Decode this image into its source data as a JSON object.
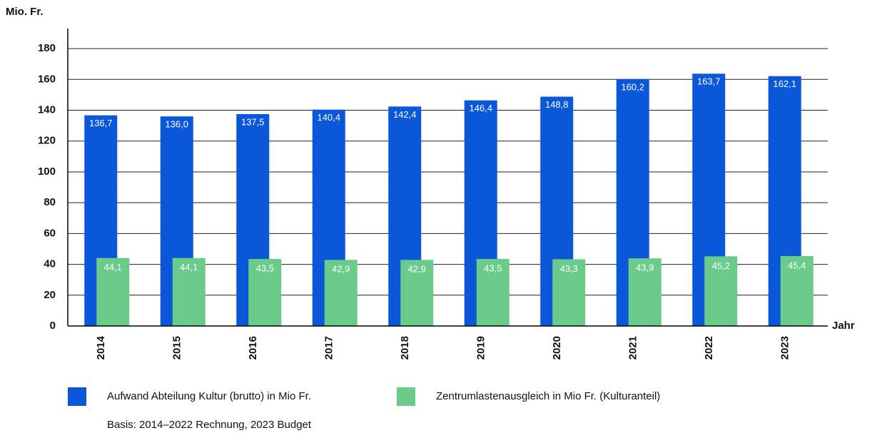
{
  "chart_data": {
    "type": "bar",
    "y_label": "Mio. Fr.",
    "x_label": "Jahr",
    "note": "Basis: 2014–2022 Rechnung, 2023 Budget",
    "categories": [
      "2014",
      "2015",
      "2016",
      "2017",
      "2018",
      "2019",
      "2020",
      "2021",
      "2022",
      "2023"
    ],
    "series": [
      {
        "name": "Aufwand Abteilung Kultur (brutto) in Mio Fr.",
        "color": "#0b57d9",
        "values": [
          136.7,
          136.0,
          137.5,
          140.4,
          142.4,
          146.4,
          148.8,
          160.2,
          163.7,
          162.1
        ],
        "value_labels": [
          "136,7",
          "136,0",
          "137,5",
          "140,4",
          "142,4",
          "146,4",
          "148,8",
          "160,2",
          "163,7",
          "162,1"
        ]
      },
      {
        "name": "Zentrumlastenausgleich in Mio Fr. (Kulturanteil)",
        "color": "#6acb8b",
        "values": [
          44.1,
          44.1,
          43.5,
          42.9,
          42.9,
          43.5,
          43.3,
          43.9,
          45.2,
          45.4
        ],
        "value_labels": [
          "44,1",
          "44,1",
          "43,5",
          "42,9",
          "42,9",
          "43,5",
          "43,3",
          "43,9",
          "45,2",
          "45,4"
        ]
      }
    ],
    "ylim": [
      0,
      193
    ],
    "yticks": [
      0,
      20,
      40,
      60,
      80,
      100,
      120,
      140,
      160,
      180
    ],
    "grid": true
  }
}
